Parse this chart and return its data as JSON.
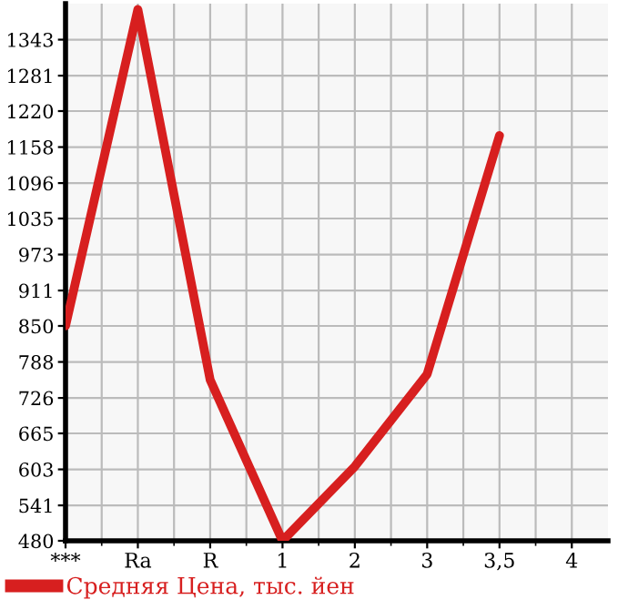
{
  "chart_data": {
    "type": "line",
    "categories": [
      "***",
      "Ra",
      "R",
      "1",
      "2",
      "3",
      "3,5",
      "4"
    ],
    "series": [
      {
        "name": "Средняя Цена, тыс. йен",
        "color": "#d71f1f",
        "values": [
          850,
          1395,
          757,
          480,
          608,
          767,
          1178,
          null
        ]
      }
    ],
    "ylim": [
      480,
      1405
    ],
    "yticks": [
      480,
      541,
      603,
      665,
      726,
      788,
      850,
      911,
      973,
      1035,
      1096,
      1158,
      1220,
      1281,
      1343
    ],
    "grid": true,
    "legend": "bottom left",
    "marker": "none",
    "line_style": "solid"
  }
}
